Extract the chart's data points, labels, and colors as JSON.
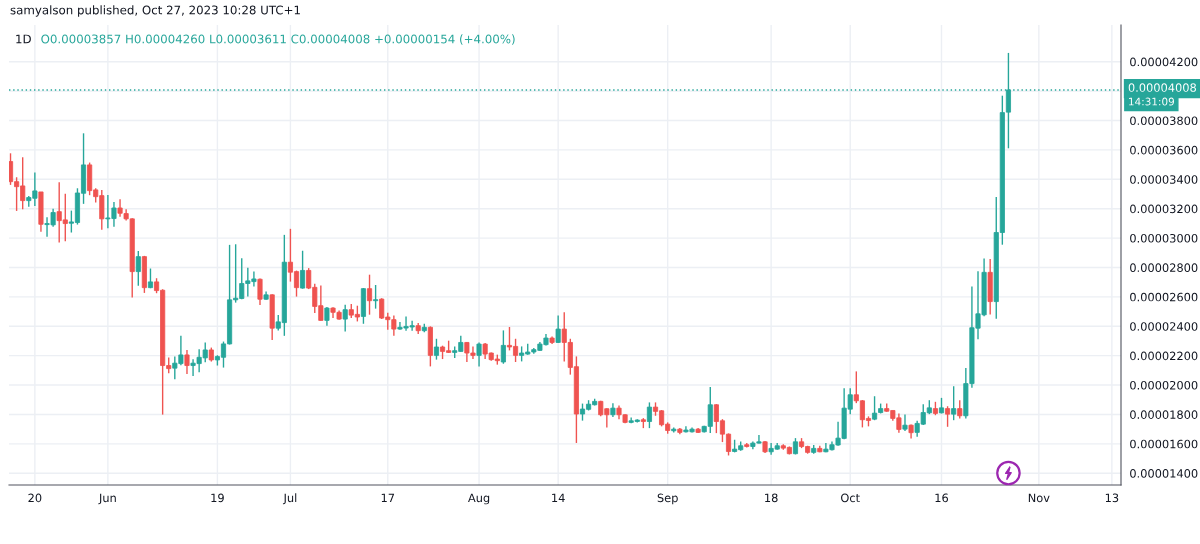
{
  "chart_data": {
    "type": "candlestick",
    "title": "1D",
    "subtitle": "O0.00003857 H0.00004260 L0.00003611 C0.00004008 +0.00000154 (+4.00%)",
    "annotations": [
      "samyalson published, Oct 27, 2023 10:28 UTC+1",
      "14:31:09"
    ],
    "x": [
      "2023-05-16",
      "2023-05-17",
      "2023-05-18",
      "2023-05-19",
      "2023-05-20",
      "2023-05-21",
      "2023-05-22",
      "2023-05-23",
      "2023-05-24",
      "2023-05-25",
      "2023-05-26",
      "2023-05-27",
      "2023-05-28",
      "2023-05-29",
      "2023-05-30",
      "2023-05-31",
      "2023-06-01",
      "2023-06-02",
      "2023-06-03",
      "2023-06-04",
      "2023-06-05",
      "2023-06-06",
      "2023-06-07",
      "2023-06-08",
      "2023-06-09",
      "2023-06-10",
      "2023-06-11",
      "2023-06-12",
      "2023-06-13",
      "2023-06-14",
      "2023-06-15",
      "2023-06-16",
      "2023-06-17",
      "2023-06-18",
      "2023-06-19",
      "2023-06-20",
      "2023-06-21",
      "2023-06-22",
      "2023-06-23",
      "2023-06-24",
      "2023-06-25",
      "2023-06-26",
      "2023-06-27",
      "2023-06-28",
      "2023-06-29",
      "2023-06-30",
      "2023-07-01",
      "2023-07-02",
      "2023-07-03",
      "2023-07-04",
      "2023-07-05",
      "2023-07-06",
      "2023-07-07",
      "2023-07-08",
      "2023-07-09",
      "2023-07-10",
      "2023-07-11",
      "2023-07-12",
      "2023-07-13",
      "2023-07-14",
      "2023-07-15",
      "2023-07-16",
      "2023-07-17",
      "2023-07-18",
      "2023-07-19",
      "2023-07-20",
      "2023-07-21",
      "2023-07-22",
      "2023-07-23",
      "2023-07-24",
      "2023-07-25",
      "2023-07-26",
      "2023-07-27",
      "2023-07-28",
      "2023-07-29",
      "2023-07-30",
      "2023-07-31",
      "2023-08-01",
      "2023-08-02",
      "2023-08-03",
      "2023-08-04",
      "2023-08-05",
      "2023-08-06",
      "2023-08-07",
      "2023-08-08",
      "2023-08-09",
      "2023-08-10",
      "2023-08-11",
      "2023-08-12",
      "2023-08-13",
      "2023-08-14",
      "2023-08-15",
      "2023-08-16",
      "2023-08-17",
      "2023-08-18",
      "2023-08-19",
      "2023-08-20",
      "2023-08-21",
      "2023-08-22",
      "2023-08-23",
      "2023-08-24",
      "2023-08-25",
      "2023-08-26",
      "2023-08-27",
      "2023-08-28",
      "2023-08-29",
      "2023-08-30",
      "2023-08-31",
      "2023-09-01",
      "2023-09-02",
      "2023-09-03",
      "2023-09-04",
      "2023-09-05",
      "2023-09-06",
      "2023-09-07",
      "2023-09-08",
      "2023-09-09",
      "2023-09-10",
      "2023-09-11",
      "2023-09-12",
      "2023-09-13",
      "2023-09-14",
      "2023-09-15",
      "2023-09-16",
      "2023-09-17",
      "2023-09-18",
      "2023-09-19",
      "2023-09-20",
      "2023-09-21",
      "2023-09-22",
      "2023-09-23",
      "2023-09-24",
      "2023-09-25",
      "2023-09-26",
      "2023-09-27",
      "2023-09-28",
      "2023-09-29",
      "2023-09-30",
      "2023-10-01",
      "2023-10-02",
      "2023-10-03",
      "2023-10-04",
      "2023-10-05",
      "2023-10-06",
      "2023-10-07",
      "2023-10-08",
      "2023-10-09",
      "2023-10-10",
      "2023-10-11",
      "2023-10-12",
      "2023-10-13",
      "2023-10-14",
      "2023-10-15",
      "2023-10-16",
      "2023-10-17",
      "2023-10-18",
      "2023-10-19",
      "2023-10-20",
      "2023-10-21",
      "2023-10-22",
      "2023-10-23",
      "2023-10-24",
      "2023-10-25",
      "2023-10-26",
      "2023-10-27"
    ],
    "ohlc": [
      [
        3.521e-05,
        3.577e-05,
        3.362e-05,
        3.384e-05
      ],
      [
        3.384e-05,
        3.414e-05,
        3.185e-05,
        3.35e-05
      ],
      [
        3.355e-05,
        3.55e-05,
        3.196e-05,
        3.255e-05
      ],
      [
        3.255e-05,
        3.287e-05,
        3.214e-05,
        3.276e-05
      ],
      [
        3.271e-05,
        3.446e-05,
        3.219e-05,
        3.321e-05
      ],
      [
        3.314e-05,
        3.314e-05,
        3.044e-05,
        3.094e-05
      ],
      [
        3.092e-05,
        3.142e-05,
        3.01e-05,
        3.099e-05
      ],
      [
        3.09e-05,
        3.199e-05,
        3.078e-05,
        3.174e-05
      ],
      [
        3.18e-05,
        3.38e-05,
        2.97e-05,
        3.119e-05
      ],
      [
        3.124e-05,
        3.301e-05,
        2.979e-05,
        3.099e-05
      ],
      [
        3.101e-05,
        3.187e-05,
        3.038e-05,
        3.11e-05
      ],
      [
        3.106e-05,
        3.339e-05,
        3.092e-05,
        3.307e-05
      ],
      [
        3.305e-05,
        3.713e-05,
        3.233e-05,
        3.498e-05
      ],
      [
        3.498e-05,
        3.514e-05,
        3.292e-05,
        3.323e-05
      ],
      [
        3.328e-05,
        3.339e-05,
        3.242e-05,
        3.282e-05
      ],
      [
        3.289e-05,
        3.328e-05,
        3.056e-05,
        3.131e-05
      ],
      [
        3.131e-05,
        3.294e-05,
        3.067e-05,
        3.137e-05
      ],
      [
        3.133e-05,
        3.246e-05,
        3.078e-05,
        3.205e-05
      ],
      [
        3.205e-05,
        3.264e-05,
        3.146e-05,
        3.169e-05
      ],
      [
        3.167e-05,
        3.196e-05,
        3.119e-05,
        3.131e-05
      ],
      [
        3.131e-05,
        3.135e-05,
        2.595e-05,
        2.772e-05
      ],
      [
        2.772e-05,
        2.913e-05,
        2.675e-05,
        2.874e-05
      ],
      [
        2.874e-05,
        2.879e-05,
        2.627e-05,
        2.663e-05
      ],
      [
        2.663e-05,
        2.793e-05,
        2.659e-05,
        2.702e-05
      ],
      [
        2.702e-05,
        2.727e-05,
        2.625e-05,
        2.643e-05
      ],
      [
        2.645e-05,
        2.652e-05,
        1.799e-05,
        2.133e-05
      ],
      [
        2.133e-05,
        2.187e-05,
        2.081e-05,
        2.112e-05
      ],
      [
        2.115e-05,
        2.194e-05,
        2.04e-05,
        2.149e-05
      ],
      [
        2.146e-05,
        2.335e-05,
        2.135e-05,
        2.205e-05
      ],
      [
        2.205e-05,
        2.239e-05,
        2.076e-05,
        2.133e-05
      ],
      [
        2.133e-05,
        2.176e-05,
        2.062e-05,
        2.149e-05
      ],
      [
        2.146e-05,
        2.244e-05,
        2.087e-05,
        2.189e-05
      ],
      [
        2.185e-05,
        2.289e-05,
        2.155e-05,
        2.239e-05
      ],
      [
        2.239e-05,
        2.255e-05,
        2.16e-05,
        2.171e-05
      ],
      [
        2.171e-05,
        2.203e-05,
        2.133e-05,
        2.194e-05
      ],
      [
        2.189e-05,
        2.296e-05,
        2.119e-05,
        2.28e-05
      ],
      [
        2.28e-05,
        2.954e-05,
        2.276e-05,
        2.58e-05
      ],
      [
        2.58e-05,
        2.958e-05,
        2.561e-05,
        2.591e-05
      ],
      [
        2.589e-05,
        2.863e-05,
        2.584e-05,
        2.691e-05
      ],
      [
        2.691e-05,
        2.799e-05,
        2.602e-05,
        2.709e-05
      ],
      [
        2.704e-05,
        2.772e-05,
        2.67e-05,
        2.722e-05
      ],
      [
        2.72e-05,
        2.725e-05,
        2.545e-05,
        2.584e-05
      ],
      [
        2.584e-05,
        2.636e-05,
        2.58e-05,
        2.614e-05
      ],
      [
        2.614e-05,
        2.618e-05,
        2.307e-05,
        2.387e-05
      ],
      [
        2.387e-05,
        2.477e-05,
        2.371e-05,
        2.43e-05
      ],
      [
        2.425e-05,
        3.022e-05,
        2.335e-05,
        2.836e-05
      ],
      [
        2.836e-05,
        3.063e-05,
        2.704e-05,
        2.768e-05
      ],
      [
        2.772e-05,
        2.779e-05,
        2.602e-05,
        2.663e-05
      ],
      [
        2.66e-05,
        2.914e-05,
        2.656e-05,
        2.78e-05
      ],
      [
        2.78e-05,
        2.796e-05,
        2.653e-05,
        2.66e-05
      ],
      [
        2.665e-05,
        2.69e-05,
        2.49e-05,
        2.535e-05
      ],
      [
        2.54e-05,
        2.678e-05,
        2.438e-05,
        2.44e-05
      ],
      [
        2.44e-05,
        2.531e-05,
        2.404e-05,
        2.524e-05
      ],
      [
        2.524e-05,
        2.529e-05,
        2.456e-05,
        2.495e-05
      ],
      [
        2.495e-05,
        2.508e-05,
        2.445e-05,
        2.449e-05
      ],
      [
        2.449e-05,
        2.547e-05,
        2.365e-05,
        2.513e-05
      ],
      [
        2.513e-05,
        2.551e-05,
        2.456e-05,
        2.476e-05
      ],
      [
        2.481e-05,
        2.54e-05,
        2.433e-05,
        2.463e-05
      ],
      [
        2.467e-05,
        2.66e-05,
        2.417e-05,
        2.656e-05
      ],
      [
        2.656e-05,
        2.751e-05,
        2.479e-05,
        2.574e-05
      ],
      [
        2.574e-05,
        2.681e-05,
        2.52e-05,
        2.581e-05
      ],
      [
        2.585e-05,
        2.59e-05,
        2.449e-05,
        2.456e-05
      ],
      [
        2.463e-05,
        2.492e-05,
        2.377e-05,
        2.445e-05
      ],
      [
        2.445e-05,
        2.474e-05,
        2.336e-05,
        2.381e-05
      ],
      [
        2.381e-05,
        2.429e-05,
        2.377e-05,
        2.393e-05
      ],
      [
        2.388e-05,
        2.467e-05,
        2.37e-05,
        2.399e-05
      ],
      [
        2.395e-05,
        2.438e-05,
        2.37e-05,
        2.404e-05
      ],
      [
        2.404e-05,
        2.422e-05,
        2.347e-05,
        2.37e-05
      ],
      [
        2.37e-05,
        2.417e-05,
        2.359e-05,
        2.393e-05
      ],
      [
        2.393e-05,
        2.399e-05,
        2.127e-05,
        2.202e-05
      ],
      [
        2.202e-05,
        2.315e-05,
        2.173e-05,
        2.259e-05
      ],
      [
        2.259e-05,
        2.268e-05,
        2.177e-05,
        2.229e-05
      ],
      [
        2.234e-05,
        2.302e-05,
        2.218e-05,
        2.222e-05
      ],
      [
        2.222e-05,
        2.263e-05,
        2.184e-05,
        2.234e-05
      ],
      [
        2.229e-05,
        2.336e-05,
        2.227e-05,
        2.29e-05
      ],
      [
        2.29e-05,
        2.293e-05,
        2.157e-05,
        2.218e-05
      ],
      [
        2.218e-05,
        2.263e-05,
        2.177e-05,
        2.202e-05
      ],
      [
        2.202e-05,
        2.29e-05,
        2.127e-05,
        2.279e-05
      ],
      [
        2.279e-05,
        2.286e-05,
        2.177e-05,
        2.211e-05
      ],
      [
        2.218e-05,
        2.222e-05,
        2.166e-05,
        2.173e-05
      ],
      [
        2.177e-05,
        2.207e-05,
        2.139e-05,
        2.166e-05
      ],
      [
        2.157e-05,
        2.372e-05,
        2.145e-05,
        2.27e-05
      ],
      [
        2.27e-05,
        2.395e-05,
        2.236e-05,
        2.259e-05
      ],
      [
        2.263e-05,
        2.315e-05,
        2.157e-05,
        2.202e-05
      ],
      [
        2.202e-05,
        2.263e-05,
        2.161e-05,
        2.218e-05
      ],
      [
        2.211e-05,
        2.281e-05,
        2.207e-05,
        2.225e-05
      ],
      [
        2.225e-05,
        2.252e-05,
        2.213e-05,
        2.241e-05
      ],
      [
        2.236e-05,
        2.293e-05,
        2.234e-05,
        2.279e-05
      ],
      [
        2.275e-05,
        2.347e-05,
        2.27e-05,
        2.32e-05
      ],
      [
        2.32e-05,
        2.331e-05,
        2.279e-05,
        2.29e-05
      ],
      [
        2.29e-05,
        2.474e-05,
        2.286e-05,
        2.381e-05
      ],
      [
        2.381e-05,
        2.495e-05,
        2.161e-05,
        2.29e-05
      ],
      [
        2.29e-05,
        2.315e-05,
        2.071e-05,
        2.12e-05
      ],
      [
        2.125e-05,
        2.195e-05,
        1.606e-05,
        1.803e-05
      ],
      [
        1.803e-05,
        1.874e-05,
        1.758e-05,
        1.837e-05
      ],
      [
        1.835e-05,
        1.897e-05,
        1.827e-05,
        1.87e-05
      ],
      [
        1.866e-05,
        1.907e-05,
        1.861e-05,
        1.889e-05
      ],
      [
        1.889e-05,
        1.893e-05,
        1.787e-05,
        1.798e-05
      ],
      [
        1.839e-05,
        1.843e-05,
        1.712e-05,
        1.798e-05
      ],
      [
        1.798e-05,
        1.877e-05,
        1.782e-05,
        1.843e-05
      ],
      [
        1.843e-05,
        1.861e-05,
        1.768e-05,
        1.798e-05
      ],
      [
        1.798e-05,
        1.802e-05,
        1.741e-05,
        1.746e-05
      ],
      [
        1.746e-05,
        1.78e-05,
        1.741e-05,
        1.757e-05
      ],
      [
        1.752e-05,
        1.768e-05,
        1.746e-05,
        1.762e-05
      ],
      [
        1.764e-05,
        1.775e-05,
        1.707e-05,
        1.752e-05
      ],
      [
        1.752e-05,
        1.882e-05,
        1.707e-05,
        1.85e-05
      ],
      [
        1.85e-05,
        1.882e-05,
        1.791e-05,
        1.821e-05
      ],
      [
        1.825e-05,
        1.83e-05,
        1.719e-05,
        1.73e-05
      ],
      [
        1.734e-05,
        1.746e-05,
        1.669e-05,
        1.691e-05
      ],
      [
        1.689e-05,
        1.712e-05,
        1.678e-05,
        1.7e-05
      ],
      [
        1.7e-05,
        1.707e-05,
        1.666e-05,
        1.678e-05
      ],
      [
        1.682e-05,
        1.719e-05,
        1.678e-05,
        1.694e-05
      ],
      [
        1.682e-05,
        1.712e-05,
        1.678e-05,
        1.7e-05
      ],
      [
        1.7e-05,
        1.707e-05,
        1.673e-05,
        1.678e-05
      ],
      [
        1.682e-05,
        1.723e-05,
        1.678e-05,
        1.719e-05
      ],
      [
        1.719e-05,
        1.986e-05,
        1.673e-05,
        1.866e-05
      ],
      [
        1.866e-05,
        1.87e-05,
        1.673e-05,
        1.752e-05
      ],
      [
        1.757e-05,
        1.768e-05,
        1.612e-05,
        1.666e-05
      ],
      [
        1.666e-05,
        1.671e-05,
        1.521e-05,
        1.548e-05
      ],
      [
        1.548e-05,
        1.628e-05,
        1.542e-05,
        1.564e-05
      ],
      [
        1.56e-05,
        1.616e-05,
        1.553e-05,
        1.587e-05
      ],
      [
        1.594e-05,
        1.605e-05,
        1.576e-05,
        1.582e-05
      ],
      [
        1.582e-05,
        1.616e-05,
        1.564e-05,
        1.605e-05
      ],
      [
        1.605e-05,
        1.66e-05,
        1.603e-05,
        1.614e-05
      ],
      [
        1.614e-05,
        1.619e-05,
        1.537e-05,
        1.546e-05
      ],
      [
        1.546e-05,
        1.605e-05,
        1.526e-05,
        1.569e-05
      ],
      [
        1.564e-05,
        1.605e-05,
        1.56e-05,
        1.587e-05
      ],
      [
        1.587e-05,
        1.598e-05,
        1.56e-05,
        1.571e-05
      ],
      [
        1.576e-05,
        1.582e-05,
        1.528e-05,
        1.533e-05
      ],
      [
        1.533e-05,
        1.639e-05,
        1.528e-05,
        1.614e-05
      ],
      [
        1.614e-05,
        1.639e-05,
        1.571e-05,
        1.582e-05
      ],
      [
        1.582e-05,
        1.587e-05,
        1.533e-05,
        1.542e-05
      ],
      [
        1.542e-05,
        1.592e-05,
        1.533e-05,
        1.569e-05
      ],
      [
        1.569e-05,
        1.587e-05,
        1.542e-05,
        1.546e-05
      ],
      [
        1.546e-05,
        1.605e-05,
        1.542e-05,
        1.564e-05
      ],
      [
        1.56e-05,
        1.616e-05,
        1.555e-05,
        1.594e-05
      ],
      [
        1.592e-05,
        1.75e-05,
        1.587e-05,
        1.639e-05
      ],
      [
        1.637e-05,
        1.979e-05,
        1.632e-05,
        1.843e-05
      ],
      [
        1.836e-05,
        1.979e-05,
        1.802e-05,
        1.934e-05
      ],
      [
        1.934e-05,
        2.093e-05,
        1.877e-05,
        1.893e-05
      ],
      [
        1.893e-05,
        1.898e-05,
        1.712e-05,
        1.764e-05
      ],
      [
        1.773e-05,
        1.787e-05,
        1.719e-05,
        1.759e-05
      ],
      [
        1.768e-05,
        1.924e-05,
        1.761e-05,
        1.809e-05
      ],
      [
        1.813e-05,
        1.874e-05,
        1.807e-05,
        1.84e-05
      ],
      [
        1.84e-05,
        1.874e-05,
        1.818e-05,
        1.822e-05
      ],
      [
        1.827e-05,
        1.827e-05,
        1.757e-05,
        1.773e-05
      ],
      [
        1.777e-05,
        1.807e-05,
        1.676e-05,
        1.698e-05
      ],
      [
        1.7e-05,
        1.8e-05,
        1.687e-05,
        1.727e-05
      ],
      [
        1.727e-05,
        1.732e-05,
        1.637e-05,
        1.676e-05
      ],
      [
        1.678e-05,
        1.757e-05,
        1.648e-05,
        1.739e-05
      ],
      [
        1.734e-05,
        1.87e-05,
        1.728e-05,
        1.813e-05
      ],
      [
        1.811e-05,
        1.897e-05,
        1.802e-05,
        1.845e-05
      ],
      [
        1.84e-05,
        1.886e-05,
        1.795e-05,
        1.807e-05
      ],
      [
        1.811e-05,
        1.913e-05,
        1.807e-05,
        1.845e-05
      ],
      [
        1.84e-05,
        1.856e-05,
        1.716e-05,
        1.802e-05
      ],
      [
        1.802e-05,
        1.992e-05,
        1.761e-05,
        1.84e-05
      ],
      [
        1.84e-05,
        1.897e-05,
        1.773e-05,
        1.791e-05
      ],
      [
        1.791e-05,
        2.116e-05,
        1.773e-05,
        2.01e-05
      ],
      [
        2.01e-05,
        2.67e-05,
        1.981e-05,
        2.39e-05
      ],
      [
        2.387e-05,
        2.774e-05,
        2.311e-05,
        2.485e-05
      ],
      [
        2.478e-05,
        2.862e-05,
        2.469e-05,
        2.767e-05
      ],
      [
        2.767e-05,
        2.857e-05,
        2.48e-05,
        2.568e-05
      ],
      [
        2.568e-05,
        3.28e-05,
        2.451e-05,
        3.038e-05
      ],
      [
        3.038e-05,
        3.969e-05,
        2.955e-05,
        3.854e-05
      ],
      [
        3.857e-05,
        4.26e-05,
        3.611e-05,
        4.008e-05
      ]
    ],
    "colors": [
      "#ef5350",
      "#ef5350",
      "#ef5350",
      "#26a69a",
      "#26a69a",
      "#ef5350",
      "#26a69a",
      "#26a69a",
      "#ef5350",
      "#ef5350",
      "#26a69a",
      "#26a69a",
      "#26a69a",
      "#ef5350",
      "#ef5350",
      "#ef5350",
      "#26a69a",
      "#26a69a",
      "#ef5350",
      "#ef5350",
      "#ef5350",
      "#26a69a",
      "#ef5350",
      "#26a69a",
      "#ef5350",
      "#ef5350",
      "#ef5350",
      "#26a69a",
      "#26a69a",
      "#ef5350",
      "#26a69a",
      "#26a69a",
      "#26a69a",
      "#ef5350",
      "#26a69a",
      "#26a69a",
      "#26a69a",
      "#26a69a",
      "#26a69a",
      "#26a69a",
      "#26a69a",
      "#ef5350",
      "#26a69a",
      "#ef5350",
      "#26a69a",
      "#26a69a",
      "#ef5350",
      "#ef5350",
      "#26a69a",
      "#ef5350",
      "#ef5350",
      "#ef5350",
      "#26a69a",
      "#ef5350",
      "#ef5350",
      "#26a69a",
      "#ef5350",
      "#ef5350",
      "#26a69a",
      "#ef5350",
      "#26a69a",
      "#ef5350",
      "#ef5350",
      "#ef5350",
      "#26a69a",
      "#26a69a",
      "#26a69a",
      "#ef5350",
      "#26a69a",
      "#ef5350",
      "#26a69a",
      "#ef5350",
      "#ef5350",
      "#26a69a",
      "#26a69a",
      "#ef5350",
      "#ef5350",
      "#26a69a",
      "#ef5350",
      "#ef5350",
      "#ef5350",
      "#26a69a",
      "#ef5350",
      "#ef5350",
      "#26a69a",
      "#26a69a",
      "#26a69a",
      "#26a69a",
      "#26a69a",
      "#ef5350",
      "#26a69a",
      "#ef5350",
      "#ef5350",
      "#ef5350",
      "#26a69a",
      "#26a69a",
      "#26a69a",
      "#ef5350",
      "#ef5350",
      "#26a69a",
      "#ef5350",
      "#ef5350",
      "#26a69a",
      "#26a69a",
      "#ef5350",
      "#26a69a",
      "#ef5350",
      "#ef5350",
      "#ef5350",
      "#26a69a",
      "#ef5350",
      "#26a69a",
      "#26a69a",
      "#ef5350",
      "#26a69a",
      "#26a69a",
      "#ef5350",
      "#ef5350",
      "#ef5350",
      "#26a69a",
      "#26a69a",
      "#ef5350",
      "#26a69a",
      "#26a69a",
      "#ef5350",
      "#26a69a",
      "#26a69a",
      "#ef5350",
      "#ef5350",
      "#26a69a",
      "#ef5350",
      "#ef5350",
      "#26a69a",
      "#ef5350",
      "#26a69a",
      "#26a69a",
      "#26a69a",
      "#26a69a",
      "#26a69a",
      "#ef5350",
      "#ef5350",
      "#ef5350",
      "#26a69a",
      "#26a69a",
      "#ef5350",
      "#ef5350",
      "#ef5350",
      "#26a69a",
      "#ef5350",
      "#26a69a",
      "#26a69a",
      "#26a69a",
      "#ef5350",
      "#26a69a",
      "#ef5350",
      "#26a69a",
      "#ef5350",
      "#26a69a",
      "#26a69a",
      "#26a69a",
      "#26a69a",
      "#ef5350",
      "#26a69a",
      "#26a69a",
      "#26a69a"
    ],
    "xlim": [
      "2023-05-15T18:00",
      "2023-11-14T12:00"
    ],
    "xticks": [
      {
        "value": "2023-05-20",
        "label": "20"
      },
      {
        "value": "2023-06-01",
        "label": "Jun"
      },
      {
        "value": "2023-06-19",
        "label": "19"
      },
      {
        "value": "2023-07-01",
        "label": "Jul"
      },
      {
        "value": "2023-07-17",
        "label": "17"
      },
      {
        "value": "2023-08-01",
        "label": "Aug"
      },
      {
        "value": "2023-08-14",
        "label": "14"
      },
      {
        "value": "2023-09-01",
        "label": "Sep"
      },
      {
        "value": "2023-09-18",
        "label": "18"
      },
      {
        "value": "2023-10-01",
        "label": "Oct"
      },
      {
        "value": "2023-10-16",
        "label": "16"
      },
      {
        "value": "2023-11-01",
        "label": "Nov"
      },
      {
        "value": "2023-11-13",
        "label": "13"
      }
    ],
    "ylim": [
      1.32e-05,
      4.45e-05
    ],
    "yticks": [
      {
        "value": 1.4e-05,
        "label": "0.00001400"
      },
      {
        "value": 1.6e-05,
        "label": "0.00001600"
      },
      {
        "value": 1.8e-05,
        "label": "0.00001800"
      },
      {
        "value": 2e-05,
        "label": "0.00002000"
      },
      {
        "value": 2.2e-05,
        "label": "0.00002200"
      },
      {
        "value": 2.4e-05,
        "label": "0.00002400"
      },
      {
        "value": 2.6e-05,
        "label": "0.00002600"
      },
      {
        "value": 2.8e-05,
        "label": "0.00002800"
      },
      {
        "value": 3e-05,
        "label": "0.00003000"
      },
      {
        "value": 3.2e-05,
        "label": "0.00003200"
      },
      {
        "value": 3.4e-05,
        "label": "0.00003400"
      },
      {
        "value": 3.6e-05,
        "label": "0.00003600"
      },
      {
        "value": 3.8e-05,
        "label": "0.00003800"
      },
      {
        "value": 4e-05,
        "label": null
      },
      {
        "value": 4.2e-05,
        "label": "0.00004200"
      }
    ],
    "grid": true,
    "ref_lines": [
      {
        "axis": "y",
        "value": 4.008e-05,
        "label": "0.00004008",
        "color": "#26a69a",
        "line_style": "dotted"
      }
    ]
  }
}
